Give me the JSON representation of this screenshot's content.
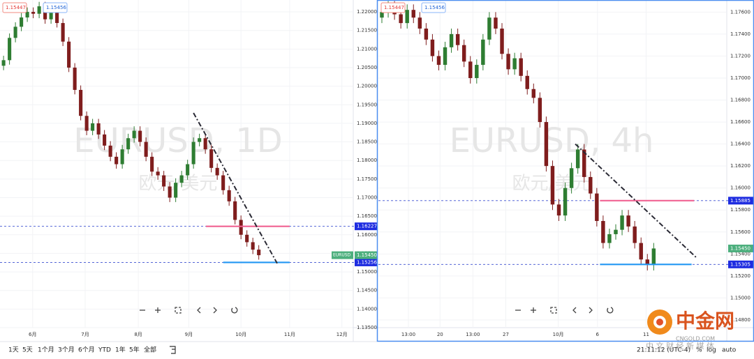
{
  "chart_data": [
    {
      "type": "candlestick",
      "title": "EURUSD, 1D",
      "subtitle": "欧元/美元",
      "grid": true,
      "up_color": "#2e7d32",
      "down_color": "#7f1d1d",
      "line_color": "#3a4fd0",
      "tag_color": "#1e2ce0",
      "xlim": [
        -0.6,
        58.8
      ],
      "xticks": [
        {
          "value": 4.9,
          "label": "6月"
        },
        {
          "value": 13.75,
          "label": "7月"
        },
        {
          "value": 22.7,
          "label": "8月"
        },
        {
          "value": 31.2,
          "label": "9月"
        },
        {
          "value": 40,
          "label": "10月"
        },
        {
          "value": 48.2,
          "label": "11月"
        },
        {
          "value": 57,
          "label": "12月"
        }
      ],
      "ylim": [
        1.135,
        1.2232
      ],
      "yticks": [
        {
          "value": 1.135,
          "label": "1.13500"
        },
        {
          "value": 1.14,
          "label": "1.14000"
        },
        {
          "value": 1.145,
          "label": "1.14500"
        },
        {
          "value": 1.15,
          "label": "1.15000"
        },
        {
          "value": 1.155,
          "label": "1.15500"
        },
        {
          "value": 1.16,
          "label": "1.16000"
        },
        {
          "value": 1.165,
          "label": "1.16500"
        },
        {
          "value": 1.17,
          "label": "1.17000"
        },
        {
          "value": 1.175,
          "label": "1.17500"
        },
        {
          "value": 1.18,
          "label": "1.18000"
        },
        {
          "value": 1.185,
          "label": "1.18500"
        },
        {
          "value": 1.19,
          "label": "1.19000"
        },
        {
          "value": 1.195,
          "label": "1.19500"
        },
        {
          "value": 1.2,
          "label": "1.20000"
        },
        {
          "value": 1.205,
          "label": "1.20500"
        },
        {
          "value": 1.21,
          "label": "1.21000"
        },
        {
          "value": 1.215,
          "label": "1.21500"
        },
        {
          "value": 1.22,
          "label": "1.22000"
        }
      ],
      "open": [
        1.2055,
        1.207,
        1.213,
        1.216,
        1.2185,
        1.22,
        1.2195,
        1.2215,
        1.218,
        1.22,
        1.217,
        1.212,
        1.205,
        1.199,
        1.192,
        1.188,
        1.19,
        1.187,
        1.184,
        1.181,
        1.179,
        1.183,
        1.186,
        1.188,
        1.185,
        1.181,
        1.177,
        1.176,
        1.173,
        1.17,
        1.174,
        1.176,
        1.179,
        1.185,
        1.186,
        1.183,
        1.178,
        1.176,
        1.172,
        1.169,
        1.164,
        1.16,
        1.158,
        1.156
      ],
      "high": [
        1.2082,
        1.2142,
        1.2172,
        1.2197,
        1.2212,
        1.2212,
        1.2227,
        1.2227,
        1.2212,
        1.2212,
        1.2182,
        1.2132,
        1.2062,
        1.2002,
        1.1932,
        1.1912,
        1.1912,
        1.1882,
        1.1852,
        1.1822,
        1.1842,
        1.1872,
        1.1892,
        1.1892,
        1.1862,
        1.1822,
        1.1782,
        1.1772,
        1.1742,
        1.1752,
        1.1772,
        1.1802,
        1.1862,
        1.1872,
        1.1872,
        1.1842,
        1.1792,
        1.1772,
        1.1732,
        1.1702,
        1.1652,
        1.1612,
        1.1592,
        1.1572
      ],
      "low": [
        1.2043,
        1.2058,
        1.2118,
        1.2148,
        1.2173,
        1.2183,
        1.2183,
        1.2168,
        1.2168,
        1.2158,
        1.2108,
        1.2038,
        1.1978,
        1.1908,
        1.1868,
        1.1868,
        1.1858,
        1.1828,
        1.1798,
        1.1778,
        1.1778,
        1.1818,
        1.1848,
        1.1838,
        1.1798,
        1.1758,
        1.1748,
        1.1718,
        1.1688,
        1.1688,
        1.1728,
        1.1748,
        1.1778,
        1.1838,
        1.1818,
        1.1768,
        1.1748,
        1.1708,
        1.1678,
        1.1628,
        1.1588,
        1.1568,
        1.1548,
        1.1533
      ],
      "close": [
        1.207,
        1.213,
        1.216,
        1.2185,
        1.22,
        1.2195,
        1.2215,
        1.218,
        1.22,
        1.217,
        1.212,
        1.205,
        1.199,
        1.192,
        1.188,
        1.19,
        1.187,
        1.184,
        1.181,
        1.179,
        1.183,
        1.186,
        1.188,
        1.185,
        1.181,
        1.177,
        1.176,
        1.173,
        1.17,
        1.174,
        1.176,
        1.179,
        1.185,
        1.186,
        1.183,
        1.178,
        1.176,
        1.172,
        1.169,
        1.164,
        1.16,
        1.158,
        1.156,
        1.1545
      ],
      "levels": [
        {
          "value": 1.16227,
          "color": "#f06292",
          "from": 34.1,
          "to": 48.2
        },
        {
          "value": 1.15256,
          "color": "#2196f3",
          "from": 37,
          "to": 48.2
        }
      ],
      "trendline": {
        "start": {
          "x": 32,
          "y": 1.1928
        },
        "end": {
          "x": 46.1,
          "y": 1.1523
        }
      },
      "last": {
        "value": 1.1545,
        "label": "1.15450"
      },
      "symbol_tag": "EURUSD",
      "bid": 1.15447,
      "ask": 1.15456
    },
    {
      "type": "candlestick",
      "title": "EURUSD, 4h",
      "subtitle": "欧元/美元",
      "grid": true,
      "up_color": "#2e7d32",
      "down_color": "#7f1d1d",
      "line_color": "#3a4fd0",
      "tag_color": "#1e2ce0",
      "xlim": [
        -0.55,
        54.45
      ],
      "xticks": [
        {
          "value": 4.2,
          "label": "13:00"
        },
        {
          "value": 9.2,
          "label": "20"
        },
        {
          "value": 14.4,
          "label": "13:00"
        },
        {
          "value": 19.6,
          "label": "27"
        },
        {
          "value": 27.9,
          "label": "10月"
        },
        {
          "value": 34.1,
          "label": "6"
        },
        {
          "value": 41.8,
          "label": "11"
        }
      ],
      "ylim": [
        1.1473,
        1.1771
      ],
      "yticks": [
        {
          "value": 1.148,
          "label": "1.14800"
        },
        {
          "value": 1.15,
          "label": "1.15000"
        },
        {
          "value": 1.152,
          "label": "1.15200"
        },
        {
          "value": 1.154,
          "label": "1.15400"
        },
        {
          "value": 1.156,
          "label": "1.15600"
        },
        {
          "value": 1.158,
          "label": "1.15800"
        },
        {
          "value": 1.16,
          "label": "1.16000"
        },
        {
          "value": 1.162,
          "label": "1.16200"
        },
        {
          "value": 1.164,
          "label": "1.16400"
        },
        {
          "value": 1.166,
          "label": "1.16600"
        },
        {
          "value": 1.168,
          "label": "1.16800"
        },
        {
          "value": 1.17,
          "label": "1.17000"
        },
        {
          "value": 1.172,
          "label": "1.17200"
        },
        {
          "value": 1.174,
          "label": "1.17400"
        },
        {
          "value": 1.176,
          "label": "1.17600"
        }
      ],
      "open": [
        1.1755,
        1.176,
        1.1765,
        1.1758,
        1.175,
        1.1762,
        1.1755,
        1.1745,
        1.1735,
        1.172,
        1.1712,
        1.1728,
        1.174,
        1.173,
        1.1715,
        1.17,
        1.1712,
        1.1735,
        1.1755,
        1.1745,
        1.1722,
        1.1708,
        1.1718,
        1.1702,
        1.169,
        1.1682,
        1.166,
        1.162,
        1.1585,
        1.1575,
        1.16,
        1.1618,
        1.1635,
        1.161,
        1.1595,
        1.157,
        1.155,
        1.1558,
        1.1562,
        1.1575,
        1.1565,
        1.155,
        1.1535,
        1.153
      ],
      "high": [
        1.1765,
        1.177,
        1.177,
        1.1763,
        1.1767,
        1.1767,
        1.176,
        1.175,
        1.174,
        1.1725,
        1.1733,
        1.1745,
        1.1745,
        1.1735,
        1.172,
        1.1717,
        1.174,
        1.176,
        1.176,
        1.175,
        1.1727,
        1.1723,
        1.1723,
        1.1707,
        1.1695,
        1.1687,
        1.1665,
        1.1625,
        1.159,
        1.1605,
        1.1623,
        1.164,
        1.164,
        1.1615,
        1.16,
        1.1575,
        1.1563,
        1.1567,
        1.158,
        1.158,
        1.157,
        1.1555,
        1.154,
        1.155
      ],
      "low": [
        1.175,
        1.1755,
        1.1753,
        1.1745,
        1.1745,
        1.175,
        1.174,
        1.173,
        1.1715,
        1.1707,
        1.1707,
        1.1723,
        1.1725,
        1.171,
        1.1695,
        1.1695,
        1.1707,
        1.173,
        1.174,
        1.1717,
        1.1703,
        1.1703,
        1.1697,
        1.1685,
        1.1677,
        1.1655,
        1.1615,
        1.158,
        1.157,
        1.157,
        1.1595,
        1.1613,
        1.1605,
        1.159,
        1.1565,
        1.1545,
        1.1545,
        1.1553,
        1.1557,
        1.156,
        1.1545,
        1.153,
        1.1525,
        1.1525
      ],
      "close": [
        1.176,
        1.1765,
        1.1758,
        1.175,
        1.1762,
        1.1755,
        1.1745,
        1.1735,
        1.172,
        1.1712,
        1.1728,
        1.174,
        1.173,
        1.1715,
        1.17,
        1.1712,
        1.1735,
        1.1755,
        1.1745,
        1.1722,
        1.1708,
        1.1718,
        1.1702,
        1.169,
        1.1682,
        1.166,
        1.162,
        1.1585,
        1.1575,
        1.16,
        1.1618,
        1.1635,
        1.161,
        1.1595,
        1.157,
        1.155,
        1.1558,
        1.1562,
        1.1575,
        1.1565,
        1.155,
        1.1535,
        1.153,
        1.1545
      ],
      "levels": [
        {
          "value": 1.15885,
          "color": "#f06292",
          "from": 34.5,
          "to": 49.4
        },
        {
          "value": 1.15305,
          "color": "#2196f3",
          "from": 34.5,
          "to": 49
        }
      ],
      "trendline": {
        "start": {
          "x": 30.6,
          "y": 1.164
        },
        "end": {
          "x": 49.7,
          "y": 1.1537
        }
      },
      "last": {
        "value": 1.1545,
        "label": "1.15450"
      },
      "bid": 1.15447,
      "ask": 1.15456
    }
  ],
  "toolbar": {
    "ranges": [
      "1天",
      "5天",
      "1个月",
      "3个月",
      "6个月",
      "YTD",
      "1年",
      "5年",
      "全部"
    ],
    "time": "21:11:12 (UTC-4)",
    "options": [
      "%",
      "log",
      "auto"
    ]
  },
  "logo": {
    "name": "中金网",
    "site": "CNGOLD.COM",
    "slogan": "中 文 财 经 新 媒 体"
  }
}
